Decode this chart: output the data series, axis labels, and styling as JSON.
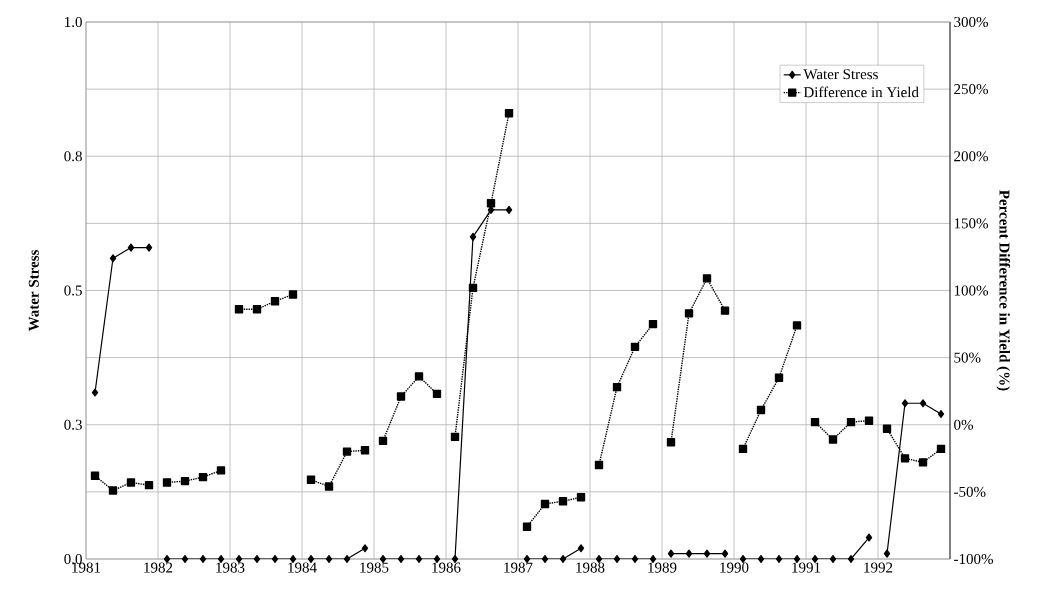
{
  "chart_data": {
    "type": "line",
    "ylabel": "Water Stress",
    "y2label": "Percent Difference in Yield (%)",
    "x": [
      1981.125,
      1981.375,
      1981.625,
      1981.875,
      1982,
      1982.125,
      1982.375,
      1982.625,
      1982.875,
      1983,
      1983.125,
      1983.375,
      1983.625,
      1983.875,
      1984,
      1984.125,
      1984.375,
      1984.625,
      1984.875,
      1985,
      1985.125,
      1985.375,
      1985.625,
      1985.875,
      1986,
      1986.125,
      1986.375,
      1986.625,
      1986.875,
      1987,
      1987.125,
      1987.375,
      1987.625,
      1987.875,
      1988,
      1988.125,
      1988.375,
      1988.625,
      1988.875,
      1989,
      1989.125,
      1989.375,
      1989.625,
      1989.875,
      1990,
      1990.125,
      1990.375,
      1990.625,
      1990.875,
      1991,
      1991.125,
      1991.375,
      1991.625,
      1991.875,
      1992,
      1992.125,
      1992.375,
      1992.625,
      1992.875
    ],
    "series": [
      {
        "name": "Water Stress",
        "color": "#000000",
        "marker": "diamond",
        "line_style": "solid",
        "values": [
          0.31,
          0.56,
          0.58,
          0.58,
          null,
          0,
          0,
          0,
          0,
          null,
          0,
          0,
          0,
          0,
          null,
          0,
          0,
          0,
          0.02,
          null,
          0,
          0,
          0,
          0,
          null,
          0,
          0.6,
          0.65,
          0.65,
          null,
          0,
          0,
          0,
          0.02,
          null,
          0,
          0,
          0,
          0,
          null,
          0.01,
          0.01,
          0.01,
          0.01,
          null,
          0,
          0,
          0,
          0,
          null,
          0,
          0,
          0,
          0.04,
          null,
          0.01,
          0.29,
          0.29,
          0.27
        ]
      },
      {
        "name": "Difference in Yield",
        "color": "#000000",
        "marker": "square",
        "line_style": "dotted",
        "axis": "y2",
        "values": [
          -38,
          -49,
          -43,
          -45,
          null,
          -43,
          -42,
          -39,
          -34,
          null,
          86,
          86,
          92,
          97,
          null,
          -41,
          -46,
          -20,
          -19,
          null,
          -12,
          21,
          36,
          23,
          null,
          -9,
          102,
          165,
          232,
          null,
          -76,
          -59,
          -57,
          -54,
          null,
          -30,
          28,
          58,
          75,
          null,
          -13,
          83,
          109,
          85,
          null,
          -18,
          11,
          35,
          74,
          null,
          2,
          -11,
          2,
          3,
          null,
          -3,
          -25,
          -28,
          -18
        ]
      }
    ],
    "xlim": [
      1981,
      1993
    ],
    "xticks": [
      1981,
      1982,
      1983,
      1984,
      1985,
      1986,
      1987,
      1988,
      1989,
      1990,
      1991,
      1992
    ],
    "ylim": [
      0,
      1
    ],
    "yticks": [
      {
        "value": 0,
        "label": "0.0"
      },
      {
        "value": 0.25,
        "label": "0.3"
      },
      {
        "value": 0.5,
        "label": "0.5"
      },
      {
        "value": 0.75,
        "label": "0.8"
      },
      {
        "value": 1,
        "label": "1.0"
      }
    ],
    "y2lim": [
      -100,
      300
    ],
    "y2ticks": [
      {
        "value": -100,
        "label": "-100%"
      },
      {
        "value": -50,
        "label": "-50%"
      },
      {
        "value": 0,
        "label": "0%"
      },
      {
        "value": 50,
        "label": "50%"
      },
      {
        "value": 100,
        "label": "100%"
      },
      {
        "value": 150,
        "label": "150%"
      },
      {
        "value": 200,
        "label": "200%"
      },
      {
        "value": 250,
        "label": "250%"
      },
      {
        "value": 300,
        "label": "300%"
      }
    ],
    "grid": true,
    "legend": "top right"
  }
}
